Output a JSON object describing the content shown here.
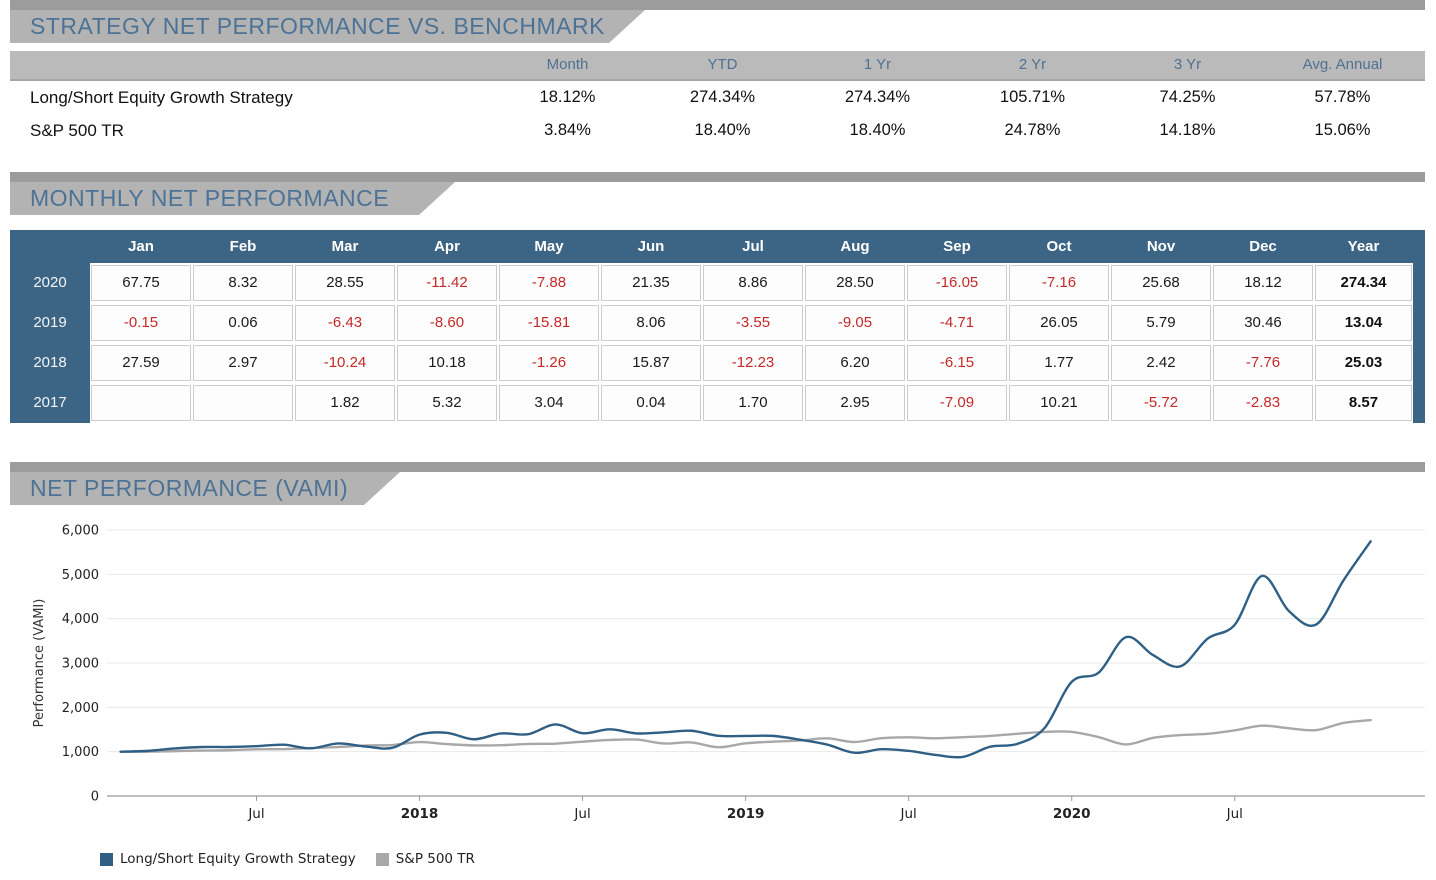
{
  "report": {
    "sections": {
      "benchmark": {
        "title": "STRATEGY NET PERFORMANCE VS. BENCHMARK"
      },
      "monthly": {
        "title": "MONTHLY NET PERFORMANCE"
      },
      "vami": {
        "title": "NET PERFORMANCE (VAMI)"
      }
    }
  },
  "benchmark_table": {
    "columns": [
      "Month",
      "YTD",
      "1 Yr",
      "2 Yr",
      "3 Yr",
      "Avg. Annual"
    ],
    "rows": [
      {
        "name": "Long/Short Equity Growth Strategy",
        "values": [
          "18.12%",
          "274.34%",
          "274.34%",
          "105.71%",
          "74.25%",
          "57.78%"
        ]
      },
      {
        "name": "S&P 500 TR",
        "values": [
          "3.84%",
          "18.40%",
          "18.40%",
          "24.78%",
          "14.18%",
          "15.06%"
        ]
      }
    ]
  },
  "monthly_table": {
    "columns": [
      "Jan",
      "Feb",
      "Mar",
      "Apr",
      "May",
      "Jun",
      "Jul",
      "Aug",
      "Sep",
      "Oct",
      "Nov",
      "Dec",
      "Year"
    ],
    "rows": [
      {
        "year": "2020",
        "months": [
          "67.75",
          "8.32",
          "28.55",
          "-11.42",
          "-7.88",
          "21.35",
          "8.86",
          "28.50",
          "-16.05",
          "-7.16",
          "25.68",
          "18.12"
        ],
        "total": "274.34"
      },
      {
        "year": "2019",
        "months": [
          "-0.15",
          "0.06",
          "-6.43",
          "-8.60",
          "-15.81",
          "8.06",
          "-3.55",
          "-9.05",
          "-4.71",
          "26.05",
          "5.79",
          "30.46"
        ],
        "total": "13.04"
      },
      {
        "year": "2018",
        "months": [
          "27.59",
          "2.97",
          "-10.24",
          "10.18",
          "-1.26",
          "15.87",
          "-12.23",
          "6.20",
          "-6.15",
          "1.77",
          "2.42",
          "-7.76"
        ],
        "total": "25.03"
      },
      {
        "year": "2017",
        "months": [
          "",
          "",
          "1.82",
          "5.32",
          "3.04",
          "0.04",
          "1.70",
          "2.95",
          "-7.09",
          "10.21",
          "-5.72",
          "-2.83"
        ],
        "total": "8.57"
      }
    ]
  },
  "chart_data": {
    "type": "line",
    "title": "NET PERFORMANCE (VAMI)",
    "ylabel": "Performance (VAMI)",
    "ylim": [
      0,
      6000
    ],
    "ytick_values": [
      0,
      1000,
      2000,
      3000,
      4000,
      5000,
      6000
    ],
    "ytick_labels": [
      "0",
      "1,000",
      "2,000",
      "3,000",
      "4,000",
      "5,000",
      "6,000"
    ],
    "grid": true,
    "legend_position": "bottom-left",
    "x_start": "2017-02",
    "x_end": "2020-12",
    "x_interval": "monthly",
    "xtick_indices": [
      5,
      11,
      17,
      23,
      29,
      35,
      41
    ],
    "xtick_labels": [
      "Jul",
      "2018",
      "Jul",
      "2019",
      "Jul",
      "2020",
      "Jul"
    ],
    "xtick_bold": [
      false,
      true,
      false,
      true,
      false,
      true,
      false
    ],
    "series": [
      {
        "name": "Long/Short Equity Growth Strategy",
        "color": "#2f5f84",
        "values": [
          1000,
          1018,
          1072,
          1105,
          1105,
          1124,
          1157,
          1075,
          1185,
          1117,
          1086,
          1385,
          1426,
          1280,
          1411,
          1393,
          1614,
          1416,
          1504,
          1412,
          1437,
          1472,
          1357,
          1355,
          1356,
          1269,
          1160,
          976,
          1055,
          1018,
          926,
          882,
          1112,
          1176,
          1534,
          2574,
          2788,
          3584,
          3175,
          2925,
          3549,
          3863,
          4964,
          4167,
          3869,
          4863,
          5744
        ]
      },
      {
        "name": "S&P 500 TR",
        "color": "#a8a8a8",
        "values": [
          1000,
          1001,
          1012,
          1026,
          1032,
          1054,
          1057,
          1079,
          1104,
          1138,
          1150,
          1216,
          1171,
          1142,
          1146,
          1174,
          1181,
          1225,
          1265,
          1272,
          1185,
          1209,
          1100,
          1188,
          1226,
          1250,
          1301,
          1218,
          1304,
          1323,
          1302,
          1326,
          1355,
          1404,
          1446,
          1446,
          1327,
          1163,
          1312,
          1374,
          1402,
          1481,
          1587,
          1527,
          1486,
          1649,
          1712
        ]
      }
    ]
  },
  "colors": {
    "section_strip": "#9c9c9c",
    "section_banner": "#b3b3b3",
    "section_title": "#4c7396",
    "table1_header_bg": "#bababa",
    "table1_header_text": "#4f7192",
    "dark_blue": "#3c6484",
    "negative_red": "#c62828",
    "line_blue": "#2f5f84",
    "line_gray": "#a8a8a8",
    "gridline": "#e8e8e8",
    "axis": "#aaaaaa"
  }
}
